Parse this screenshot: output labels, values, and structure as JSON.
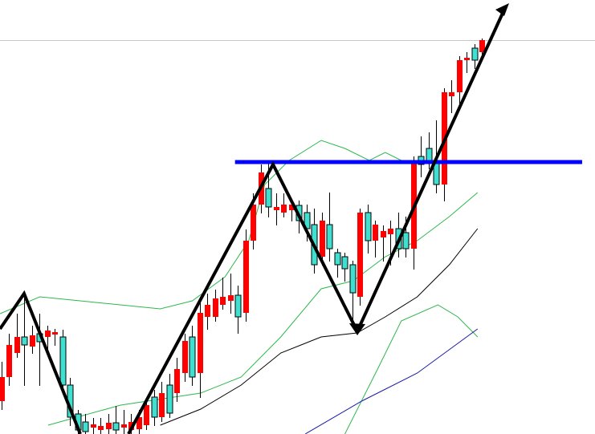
{
  "chart_data": {
    "type": "candlestick",
    "xlim": [
      -0.21,
      77.79
    ],
    "ylim": [
      0,
      541
    ],
    "up_color": "#ff0000",
    "down_color": "#40e0d0",
    "open": [
      41,
      71,
      101,
      121,
      109,
      125,
      121,
      124,
      121,
      61,
      25,
      15,
      8,
      5,
      6,
      14,
      8,
      5,
      6,
      11,
      46,
      21,
      61,
      51,
      76,
      121,
      76,
      146,
      146,
      161,
      166,
      173,
      151,
      241,
      286,
      306,
      279,
      276,
      279,
      285,
      276,
      261,
      221,
      261,
      226,
      221,
      211,
      171,
      276,
      241,
      245,
      249,
      256,
      251,
      231,
      346,
      356,
      341,
      311,
      421,
      426,
      466,
      481,
      476
    ],
    "high": [
      90,
      125,
      150,
      175,
      135,
      150,
      135,
      131,
      130,
      70,
      30,
      25,
      20,
      20,
      25,
      35,
      30,
      25,
      30,
      45,
      55,
      65,
      75,
      95,
      125,
      135,
      170,
      175,
      180,
      195,
      200,
      185,
      255,
      300,
      336,
      341,
      300,
      300,
      290,
      291,
      286,
      281,
      276,
      301,
      231,
      226,
      216,
      281,
      286,
      266,
      260,
      266,
      276,
      271,
      346,
      371,
      376,
      391,
      431,
      441,
      471,
      476,
      486,
      493
    ],
    "low": [
      30,
      60,
      95,
      60,
      100,
      60,
      105,
      110,
      50,
      10,
      0,
      0,
      0,
      0,
      0,
      0,
      0,
      0,
      0,
      5,
      10,
      15,
      20,
      40,
      65,
      60,
      45,
      130,
      140,
      155,
      150,
      125,
      140,
      230,
      275,
      270,
      260,
      270,
      265,
      250,
      240,
      200,
      210,
      215,
      195,
      190,
      140,
      160,
      225,
      220,
      215,
      210,
      220,
      220,
      205,
      320,
      330,
      300,
      290,
      400,
      410,
      450,
      455,
      470
    ],
    "close": [
      71,
      111,
      121,
      111,
      123,
      115,
      129,
      127,
      61,
      21,
      5,
      3,
      12,
      10,
      14,
      5,
      12,
      15,
      21,
      36,
      21,
      51,
      26,
      81,
      116,
      71,
      151,
      161,
      169,
      171,
      173,
      146,
      241,
      286,
      326,
      283,
      283,
      286,
      286,
      266,
      256,
      211,
      266,
      231,
      211,
      206,
      176,
      276,
      241,
      261,
      253,
      256,
      231,
      231,
      341,
      336,
      341,
      311,
      426,
      426,
      466,
      469,
      466,
      491
    ],
    "lines": [
      {
        "color": "#2db84d",
        "x": [
          -0.2,
          5,
          10.3,
          20.8,
          25,
          29.3,
          32.4,
          34.5,
          37.7,
          41.9,
          45,
          48.2,
          50.3,
          52.4
        ],
        "values": [
          150,
          171,
          166,
          156,
          166,
          196,
          241,
          311,
          341,
          366,
          356,
          341,
          351,
          341
        ]
      },
      {
        "color": "#2db84d",
        "x": [
          6.1,
          15.6,
          26.1,
          31.4,
          36.6,
          41.9,
          46.1,
          50.3,
          54.5,
          58.7,
          62.4
        ],
        "values": [
          11,
          36,
          51,
          71,
          121,
          181,
          191,
          221,
          241,
          271,
          301
        ]
      },
      {
        "color": "#000000",
        "x": [
          20.8,
          26.1,
          31.4,
          36.6,
          41.9,
          46.6,
          50.3,
          54.5,
          58.7,
          62.4
        ],
        "values": [
          11,
          31,
          61,
          101,
          121,
          126,
          146,
          171,
          211,
          256
        ]
      },
      {
        "color": "#2db84d",
        "x": [
          45,
          49.3,
          52.4,
          57.2,
          59.8,
          62.4
        ],
        "values": [
          0,
          81,
          141,
          161,
          146,
          121
        ]
      },
      {
        "color": "#1a1aa6",
        "x": [
          39.8,
          47.2,
          54.5,
          62.4
        ],
        "values": [
          0,
          41,
          76,
          131
        ]
      }
    ],
    "level": {
      "value": 339,
      "color": "#0000ff",
      "x": [
        30.6,
        76.1
      ]
    }
  }
}
